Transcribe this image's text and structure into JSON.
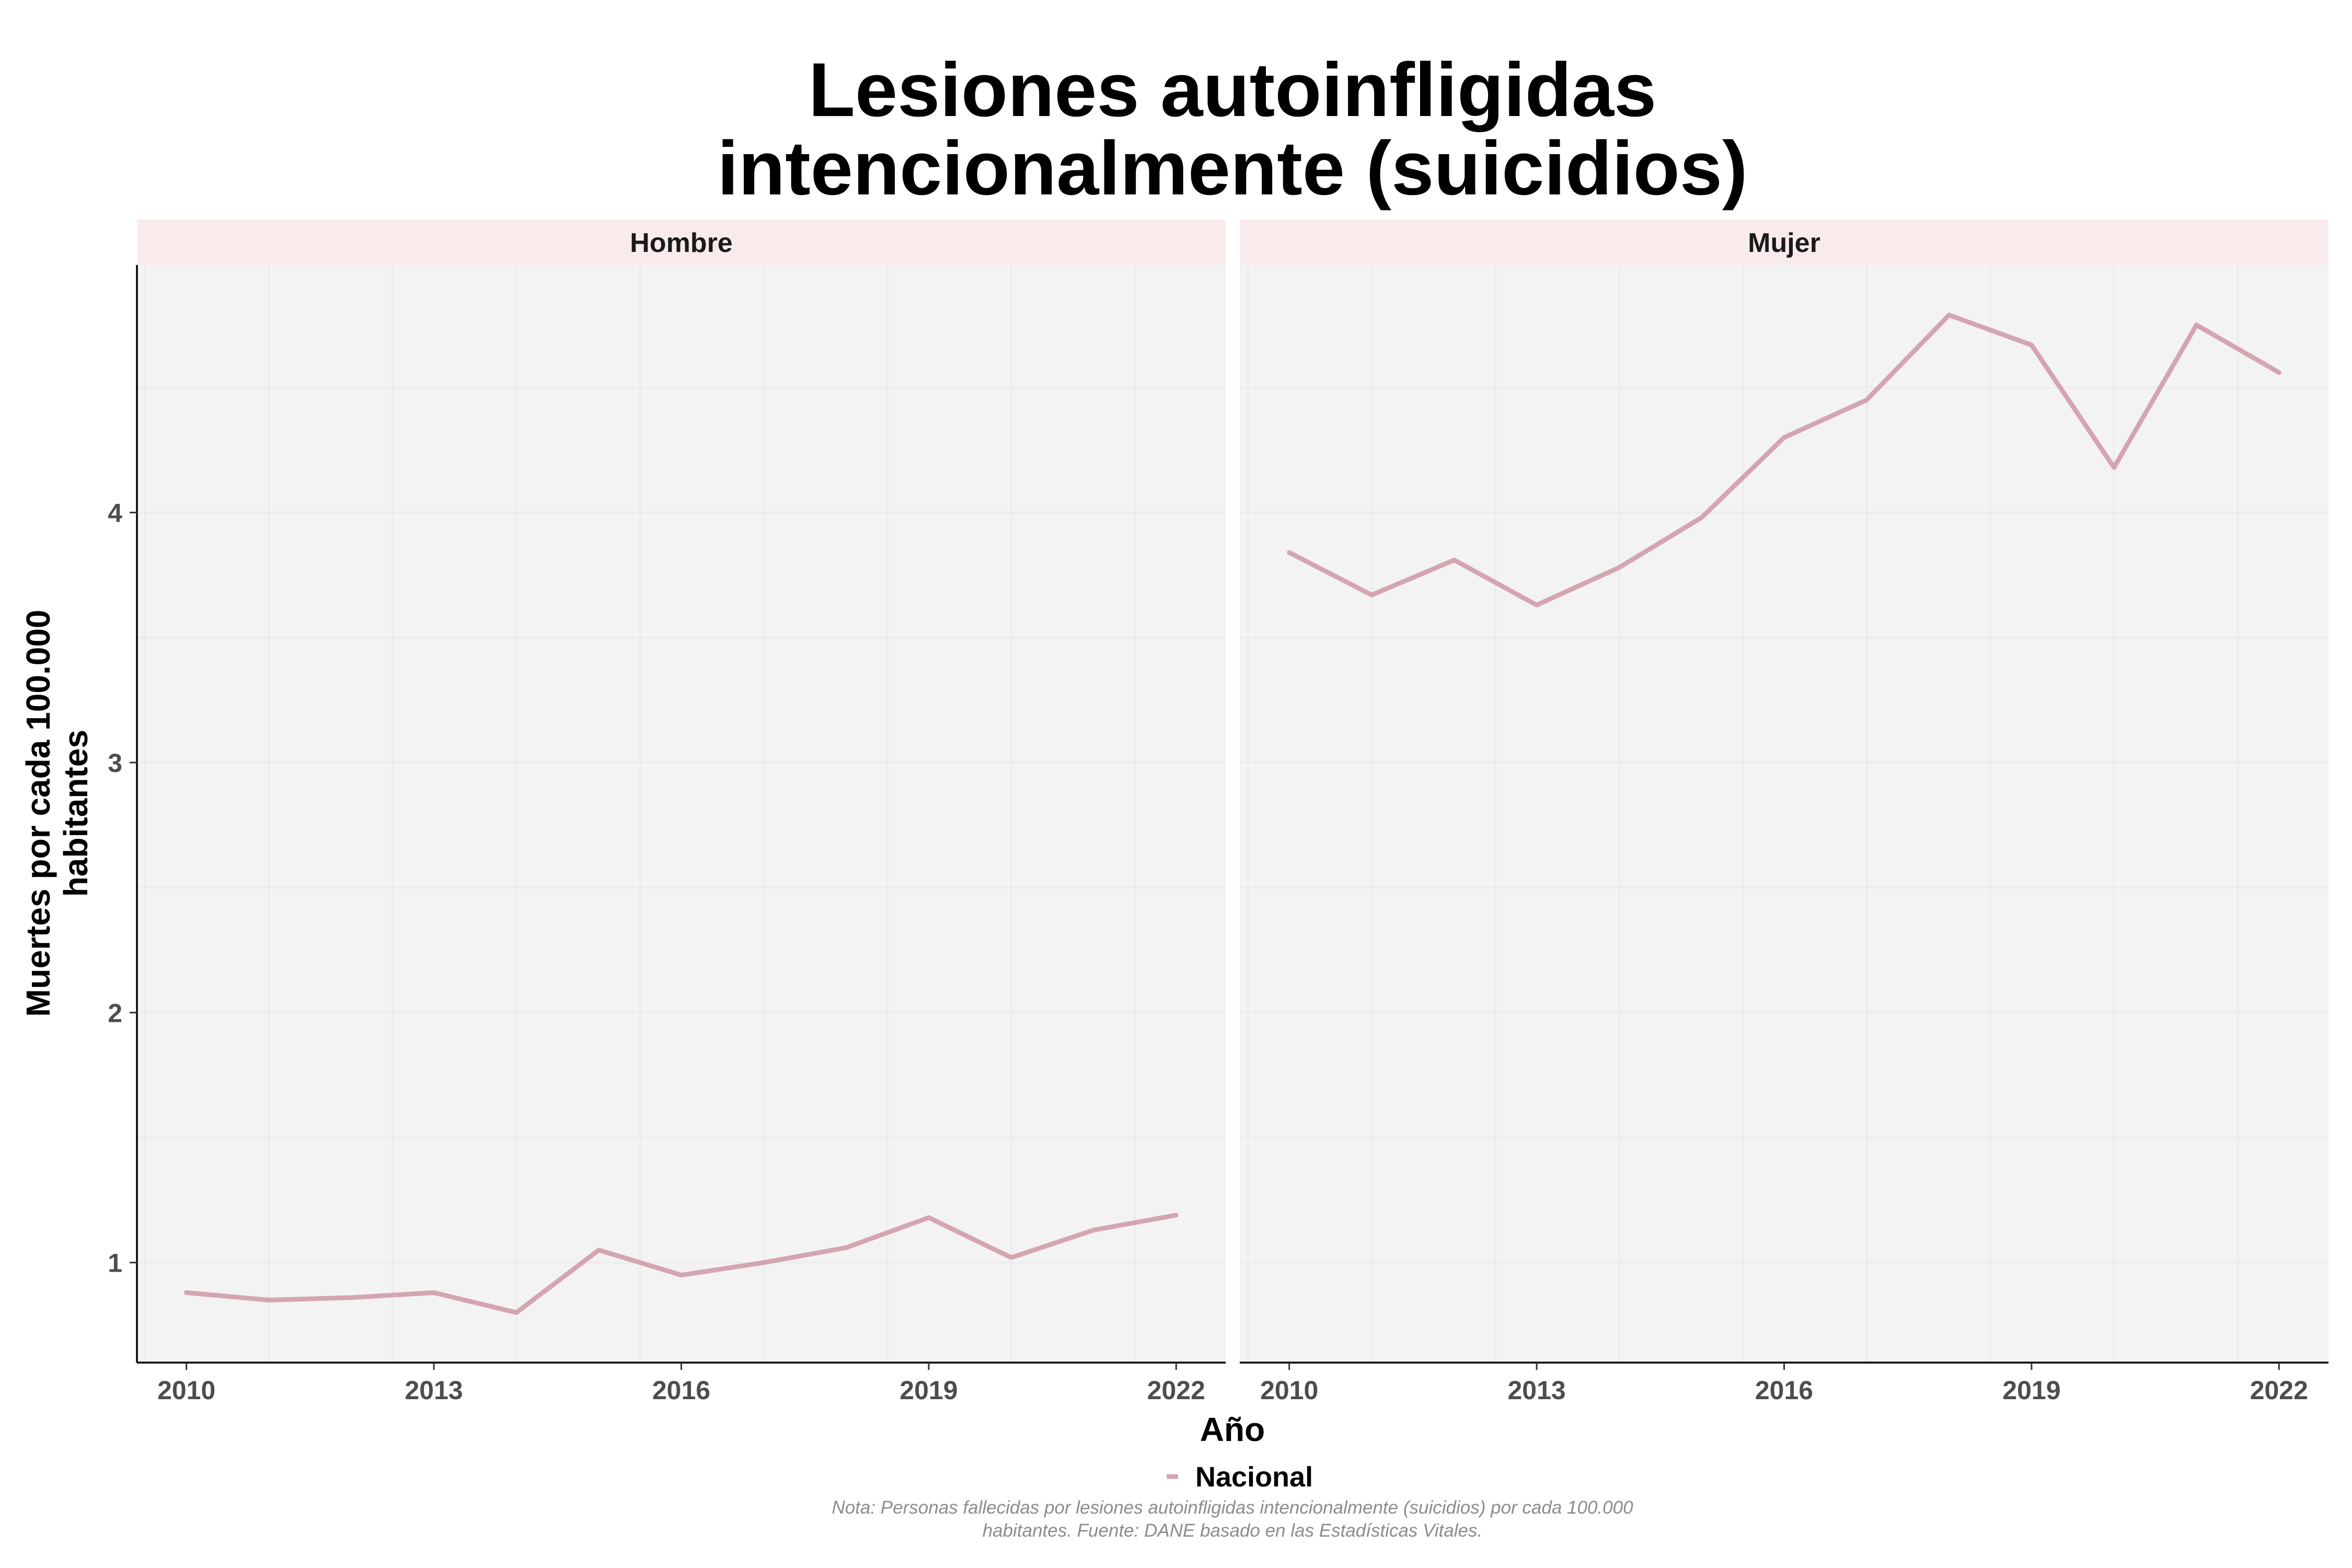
{
  "chart_data": {
    "type": "line",
    "title_lines": [
      "Lesiones autoinfligidas",
      "intencionalmente (suicidios)"
    ],
    "xlabel": "Año",
    "ylabel_lines": [
      "Muertes por cada 100.000",
      "habitantes"
    ],
    "x_ticks": [
      2010,
      2013,
      2016,
      2019,
      2022
    ],
    "y_ticks": [
      1,
      2,
      3,
      4
    ],
    "xlim": [
      2009.4,
      2022.6
    ],
    "ylim": [
      0.6,
      4.99
    ],
    "grid": true,
    "legend_position": "bottom",
    "legend": [
      "Nacional"
    ],
    "line_color": "#d4a5b1",
    "panel_color": "#f3f3f3",
    "strip_color": "#f9ebeb",
    "facets": [
      {
        "label": "Hombre",
        "series": [
          {
            "name": "Nacional",
            "x": [
              2010,
              2011,
              2012,
              2013,
              2014,
              2015,
              2016,
              2017,
              2018,
              2019,
              2020,
              2021,
              2022
            ],
            "values": [
              0.88,
              0.85,
              0.86,
              0.88,
              0.8,
              1.05,
              0.95,
              1.0,
              1.06,
              1.18,
              1.02,
              1.13,
              1.19
            ]
          }
        ]
      },
      {
        "label": "Mujer",
        "series": [
          {
            "name": "Nacional",
            "x": [
              2010,
              2011,
              2012,
              2013,
              2014,
              2015,
              2016,
              2017,
              2018,
              2019,
              2020,
              2021,
              2022
            ],
            "values": [
              3.84,
              3.67,
              3.81,
              3.63,
              3.78,
              3.98,
              4.3,
              4.45,
              4.79,
              4.67,
              4.18,
              4.75,
              4.56
            ]
          }
        ]
      }
    ],
    "note_lines": [
      "Nota: Personas fallecidas por lesiones autoinfligidas intencionalmente (suicidios) por cada 100.000",
      "habitantes. Fuente: DANE basado en las Estadísticas Vitales."
    ]
  }
}
